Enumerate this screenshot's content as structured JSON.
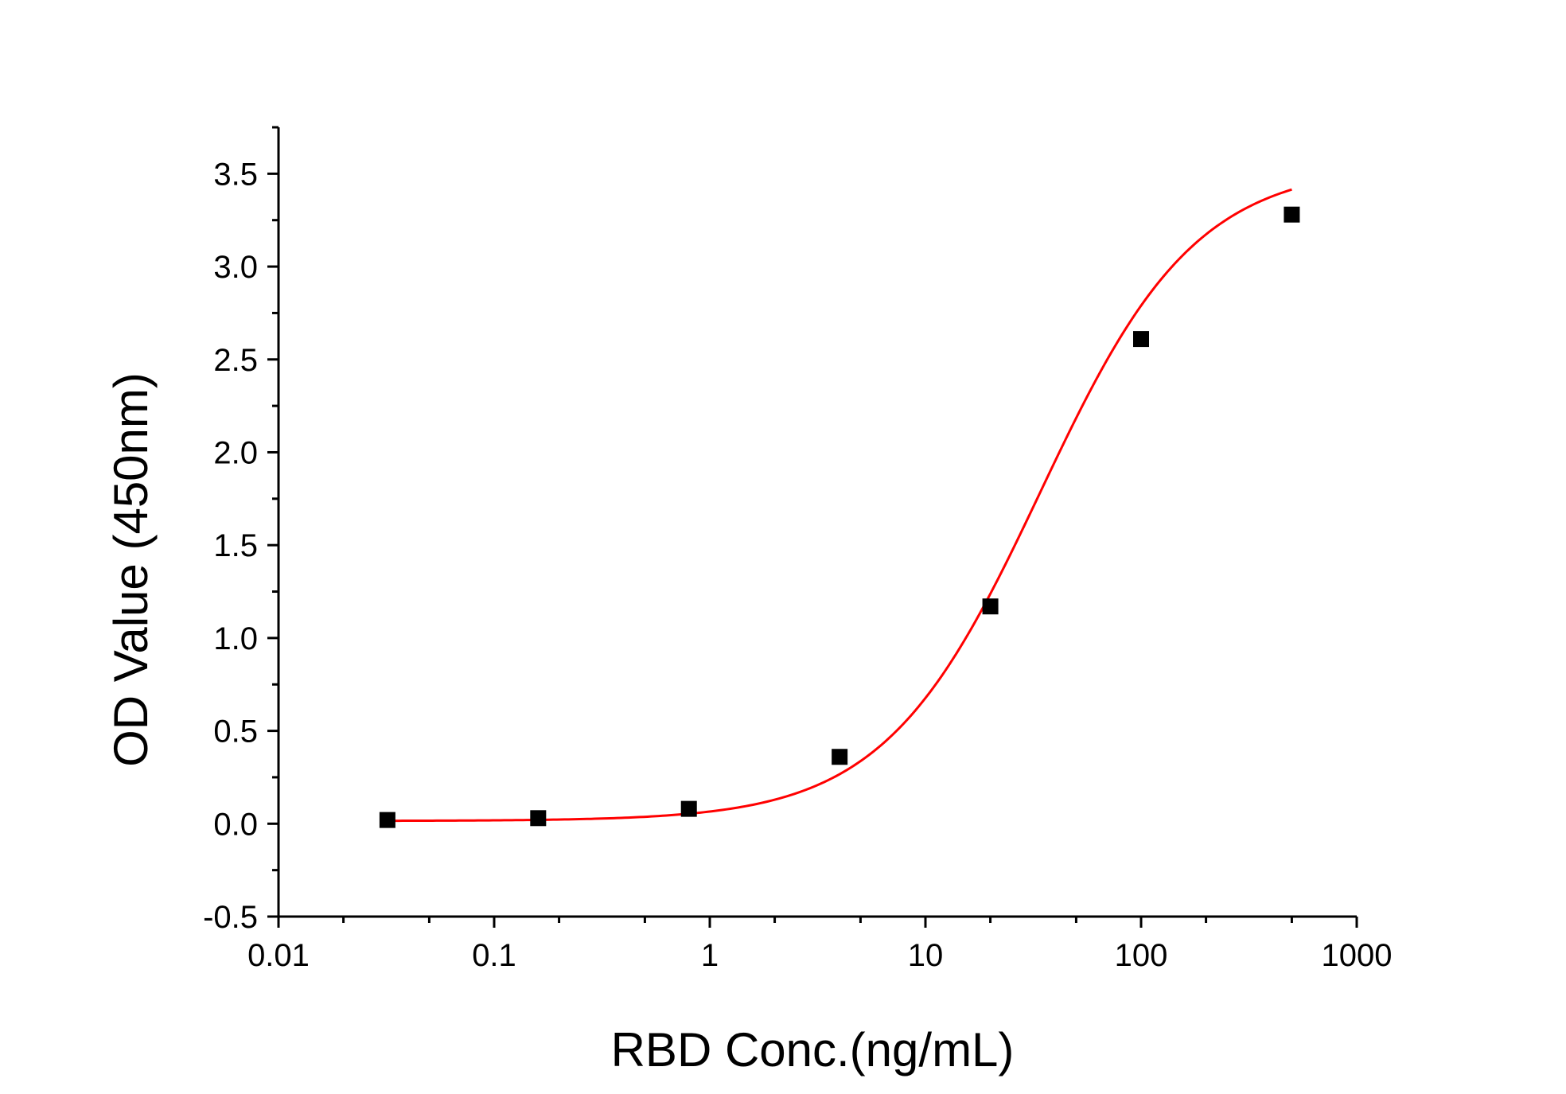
{
  "chart_data": {
    "type": "scatter",
    "title": "",
    "xlabel": "RBD Conc.(ng/mL)",
    "ylabel": "OD Value (450nm)",
    "x_scale": "log",
    "xlim": [
      0.01,
      1000
    ],
    "ylim": [
      -0.5,
      3.75
    ],
    "x_ticks": [
      {
        "value": 0.01,
        "label": "0.01"
      },
      {
        "value": 0.1,
        "label": "0.1"
      },
      {
        "value": 1,
        "label": "1"
      },
      {
        "value": 10,
        "label": "10"
      },
      {
        "value": 100,
        "label": "100"
      },
      {
        "value": 1000,
        "label": "1000"
      }
    ],
    "y_ticks": [
      {
        "value": -0.5,
        "label": "-0.5"
      },
      {
        "value": 0.0,
        "label": "0.0"
      },
      {
        "value": 0.5,
        "label": "0.5"
      },
      {
        "value": 1.0,
        "label": "1.0"
      },
      {
        "value": 1.5,
        "label": "1.5"
      },
      {
        "value": 2.0,
        "label": "2.0"
      },
      {
        "value": 2.5,
        "label": "2.5"
      },
      {
        "value": 3.0,
        "label": "3.0"
      },
      {
        "value": 3.5,
        "label": "3.5"
      }
    ],
    "grid": false,
    "legend": "none",
    "series": [
      {
        "type": "scatter",
        "marker": "square",
        "color": "#000000",
        "x": [
          0.032,
          0.16,
          0.8,
          4,
          20,
          100,
          500
        ],
        "y": [
          0.02,
          0.03,
          0.08,
          0.36,
          1.17,
          2.61,
          3.28
        ]
      }
    ],
    "fit_curve": {
      "type": "line",
      "model": "four-parameter logistic",
      "color": "#ff0000",
      "x_range": [
        0.032,
        500
      ],
      "bottom": 0.015,
      "top": 3.55,
      "ec50": 34,
      "hill": 1.2
    }
  }
}
